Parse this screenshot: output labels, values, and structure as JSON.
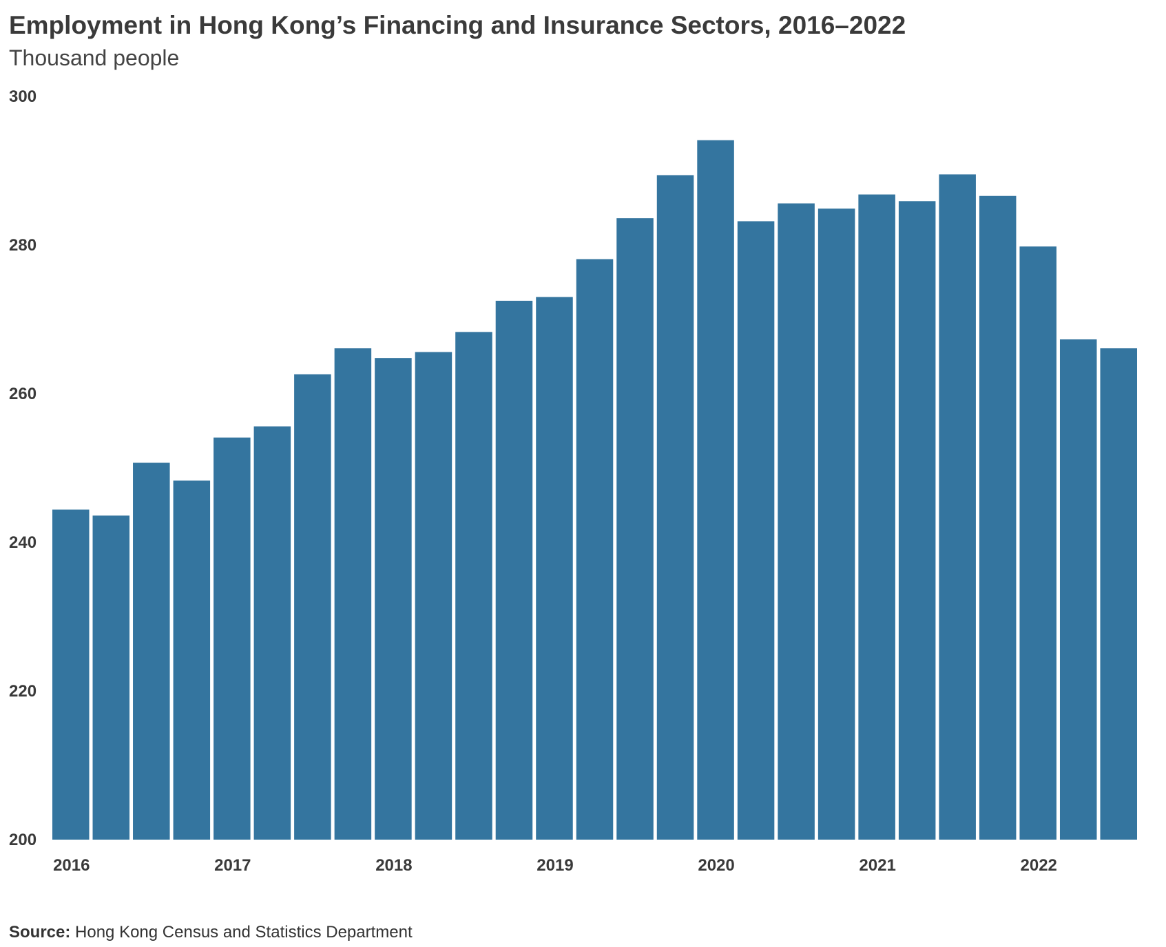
{
  "chart_data": {
    "type": "bar",
    "title": "Employment in Hong Kong’s Financing and Insurance Sectors, 2016–2022",
    "subtitle": "Thousand people",
    "xlabel": "",
    "ylabel": "",
    "ylim": [
      200,
      300
    ],
    "yticks": [
      "200",
      "220",
      "240",
      "260",
      "280",
      "300"
    ],
    "year_labels": [
      "2016",
      "2017",
      "2018",
      "2019",
      "2020",
      "2021",
      "2022"
    ],
    "categories": [
      "2016 Q1",
      "2016 Q2",
      "2016 Q3",
      "2016 Q4",
      "2017 Q1",
      "2017 Q2",
      "2017 Q3",
      "2017 Q4",
      "2018 Q1",
      "2018 Q2",
      "2018 Q3",
      "2018 Q4",
      "2019 Q1",
      "2019 Q2",
      "2019 Q3",
      "2019 Q4",
      "2020 Q1",
      "2020 Q2",
      "2020 Q3",
      "2020 Q4",
      "2021 Q1",
      "2021 Q2",
      "2021 Q3",
      "2021 Q4",
      "2022 Q1",
      "2022 Q2",
      "2022 Q3"
    ],
    "values": [
      244.4,
      243.6,
      250.7,
      248.3,
      254.1,
      255.6,
      262.6,
      266.1,
      264.8,
      265.6,
      268.3,
      272.5,
      273.0,
      278.1,
      283.6,
      289.4,
      294.1,
      283.2,
      285.6,
      284.9,
      286.8,
      285.9,
      289.5,
      286.6,
      279.8,
      267.3,
      266.1
    ],
    "bar_color": "#34759f",
    "grid": false,
    "source_label": "Source:",
    "source_text": "Hong Kong Census and Statistics Department"
  }
}
